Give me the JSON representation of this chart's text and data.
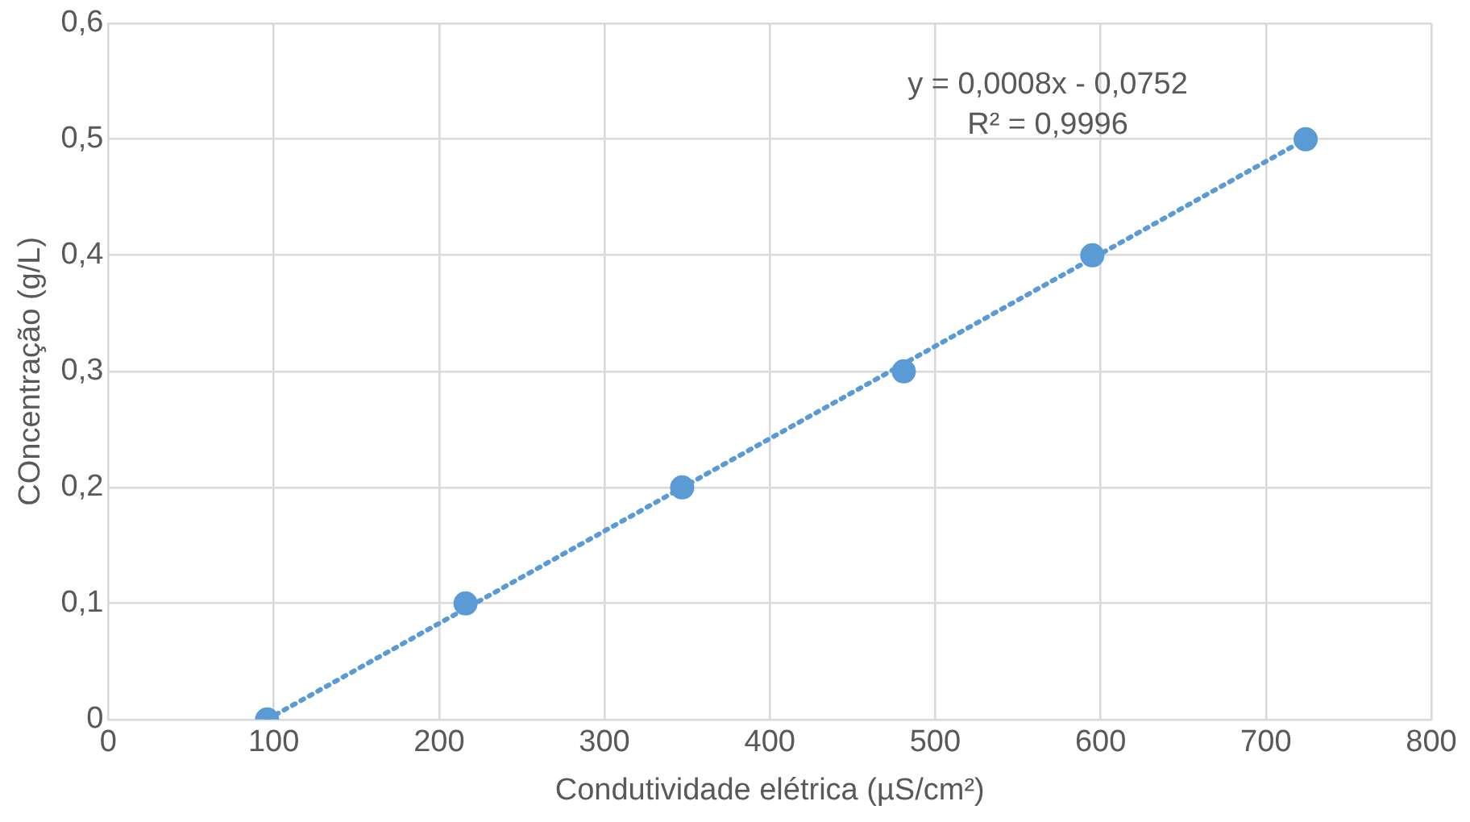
{
  "chart_data": {
    "type": "scatter",
    "xlabel": "Condutividade elétrica (µS/cm²)",
    "ylabel": "COncentração (g/L)",
    "series": [
      {
        "color": "#5b9bd5",
        "marker": "circle",
        "x": [
          96,
          216,
          347,
          481,
          595,
          724
        ],
        "values": [
          0,
          0.1,
          0.2,
          0.3,
          0.4,
          0.5
        ]
      },
      {
        "type": "line",
        "color": "#5b9bd5",
        "line_style": "dotted",
        "marker": "none",
        "x": [
          96,
          724
        ],
        "values": [
          0,
          0.5
        ]
      }
    ],
    "xlim": [
      0,
      800
    ],
    "xticks": [
      0,
      100,
      200,
      300,
      400,
      500,
      600,
      700,
      800
    ],
    "ylim": [
      0,
      0.6
    ],
    "yticks": [
      0,
      {
        "value": 0.1,
        "label": "0,1"
      },
      {
        "value": 0.2,
        "label": "0,2"
      },
      {
        "value": 0.3,
        "label": "0,3"
      },
      {
        "value": 0.4,
        "label": "0,4"
      },
      {
        "value": 0.5,
        "label": "0,5"
      },
      {
        "value": 0.6,
        "label": "0,6"
      }
    ],
    "grid": true,
    "legend": false,
    "annotations": [
      "y = 0,0008x - 0,0752",
      "R² = 0,9996"
    ]
  }
}
